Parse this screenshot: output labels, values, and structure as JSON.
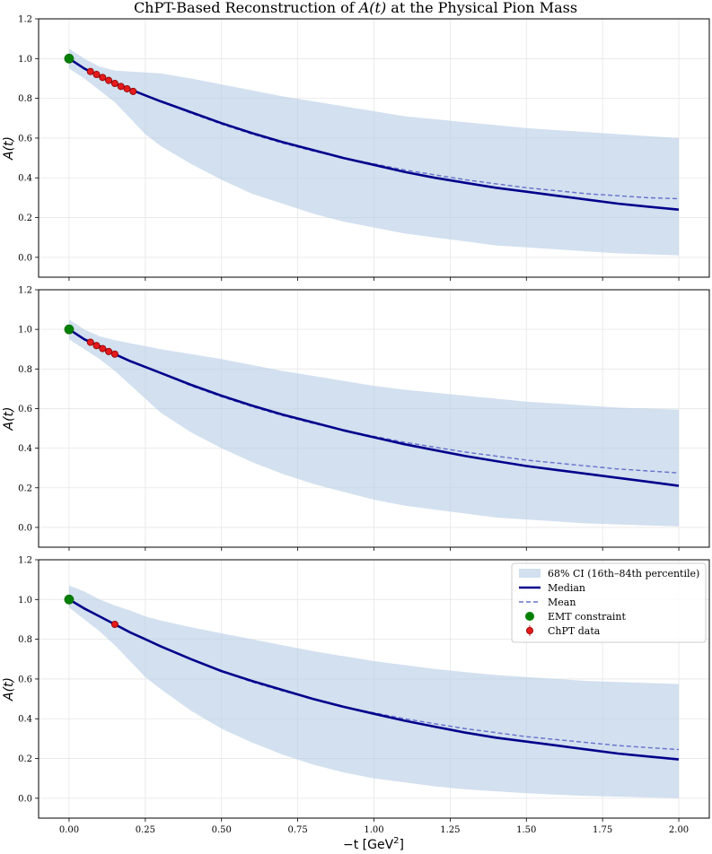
{
  "figure": {
    "title_prefix": "ChPT-Based Reconstruction of ",
    "title_math": "A(t)",
    "title_suffix": " at the Physical Pion Mass",
    "ylabel": "A(t)",
    "xlabel_prefix": "−t [GeV",
    "xlabel_sup": "2",
    "xlabel_suffix": "]"
  },
  "colors": {
    "band": "#b4cce4",
    "median": "#00008b",
    "mean": "#6670cc",
    "emt": "#008000",
    "chpt": "#e41a1c"
  },
  "legend": {
    "ci": "68% CI (16th–84th percentile)",
    "median": "Median",
    "mean": "Mean",
    "emt": "EMT constraint",
    "chpt": "ChPT data"
  },
  "chart_data": [
    {
      "type": "line",
      "panel": "top",
      "xlim": [
        -0.1,
        2.1
      ],
      "ylim": [
        -0.1,
        1.2
      ],
      "xticks": [
        "0.00",
        "0.25",
        "0.50",
        "0.75",
        "1.00",
        "1.25",
        "1.50",
        "1.75",
        "2.00"
      ],
      "yticks": [
        "0.0",
        "0.2",
        "0.4",
        "0.6",
        "0.8",
        "1.0",
        "1.2"
      ],
      "x": [
        0,
        0.05,
        0.1,
        0.15,
        0.2,
        0.25,
        0.3,
        0.4,
        0.5,
        0.6,
        0.7,
        0.8,
        0.9,
        1.0,
        1.1,
        1.2,
        1.3,
        1.4,
        1.5,
        1.6,
        1.7,
        1.8,
        1.9,
        2.0
      ],
      "median": [
        1.0,
        0.95,
        0.91,
        0.875,
        0.845,
        0.815,
        0.785,
        0.73,
        0.675,
        0.625,
        0.58,
        0.54,
        0.5,
        0.465,
        0.43,
        0.4,
        0.375,
        0.35,
        0.33,
        0.31,
        0.29,
        0.27,
        0.255,
        0.24
      ],
      "mean": [
        1.0,
        0.95,
        0.91,
        0.875,
        0.845,
        0.815,
        0.785,
        0.725,
        0.67,
        0.62,
        0.575,
        0.535,
        0.5,
        0.47,
        0.44,
        0.415,
        0.39,
        0.37,
        0.35,
        0.335,
        0.32,
        0.31,
        0.3,
        0.295
      ],
      "band_low": [
        0.95,
        0.9,
        0.84,
        0.78,
        0.7,
        0.62,
        0.56,
        0.47,
        0.39,
        0.32,
        0.27,
        0.22,
        0.18,
        0.15,
        0.12,
        0.1,
        0.08,
        0.06,
        0.05,
        0.04,
        0.03,
        0.02,
        0.015,
        0.01
      ],
      "band_high": [
        1.05,
        1.0,
        0.96,
        0.94,
        0.935,
        0.93,
        0.925,
        0.9,
        0.87,
        0.84,
        0.81,
        0.785,
        0.76,
        0.735,
        0.71,
        0.695,
        0.68,
        0.665,
        0.65,
        0.64,
        0.63,
        0.62,
        0.61,
        0.6
      ],
      "emt": {
        "x": 0,
        "y": 1.0
      },
      "chpt_x": [
        0.07,
        0.09,
        0.11,
        0.13,
        0.15,
        0.17,
        0.19,
        0.21
      ],
      "chpt_y": [
        0.935,
        0.92,
        0.905,
        0.89,
        0.875,
        0.86,
        0.848,
        0.835
      ]
    },
    {
      "type": "line",
      "panel": "middle",
      "xlim": [
        -0.1,
        2.1
      ],
      "ylim": [
        -0.1,
        1.2
      ],
      "xticks": [
        "0.00",
        "0.25",
        "0.50",
        "0.75",
        "1.00",
        "1.25",
        "1.50",
        "1.75",
        "2.00"
      ],
      "yticks": [
        "0.0",
        "0.2",
        "0.4",
        "0.6",
        "0.8",
        "1.0",
        "1.2"
      ],
      "x": [
        0,
        0.05,
        0.1,
        0.15,
        0.2,
        0.25,
        0.3,
        0.4,
        0.5,
        0.6,
        0.7,
        0.8,
        0.9,
        1.0,
        1.1,
        1.2,
        1.3,
        1.4,
        1.5,
        1.6,
        1.7,
        1.8,
        1.9,
        2.0
      ],
      "median": [
        1.0,
        0.95,
        0.915,
        0.875,
        0.84,
        0.81,
        0.78,
        0.72,
        0.665,
        0.615,
        0.57,
        0.53,
        0.49,
        0.455,
        0.42,
        0.39,
        0.36,
        0.335,
        0.31,
        0.29,
        0.27,
        0.25,
        0.23,
        0.21
      ],
      "mean": [
        1.0,
        0.95,
        0.915,
        0.875,
        0.84,
        0.81,
        0.78,
        0.715,
        0.66,
        0.61,
        0.565,
        0.525,
        0.49,
        0.46,
        0.43,
        0.405,
        0.38,
        0.36,
        0.34,
        0.325,
        0.31,
        0.295,
        0.285,
        0.275
      ],
      "band_low": [
        0.95,
        0.9,
        0.85,
        0.79,
        0.72,
        0.65,
        0.58,
        0.48,
        0.4,
        0.33,
        0.27,
        0.22,
        0.18,
        0.14,
        0.11,
        0.09,
        0.07,
        0.05,
        0.04,
        0.03,
        0.02,
        0.015,
        0.01,
        0.005
      ],
      "band_high": [
        1.05,
        1.0,
        0.965,
        0.945,
        0.93,
        0.915,
        0.9,
        0.875,
        0.85,
        0.82,
        0.79,
        0.765,
        0.74,
        0.715,
        0.695,
        0.68,
        0.665,
        0.65,
        0.635,
        0.625,
        0.615,
        0.605,
        0.6,
        0.595
      ],
      "emt": {
        "x": 0,
        "y": 1.0
      },
      "chpt_x": [
        0.07,
        0.09,
        0.11,
        0.13,
        0.15
      ],
      "chpt_y": [
        0.935,
        0.918,
        0.903,
        0.888,
        0.875
      ]
    },
    {
      "type": "line",
      "panel": "bottom",
      "xlim": [
        -0.1,
        2.1
      ],
      "ylim": [
        -0.1,
        1.2
      ],
      "xticks": [
        "0.00",
        "0.25",
        "0.50",
        "0.75",
        "1.00",
        "1.25",
        "1.50",
        "1.75",
        "2.00"
      ],
      "yticks": [
        "0.0",
        "0.2",
        "0.4",
        "0.6",
        "0.8",
        "1.0",
        "1.2"
      ],
      "x": [
        0,
        0.05,
        0.1,
        0.15,
        0.2,
        0.25,
        0.3,
        0.4,
        0.5,
        0.6,
        0.7,
        0.8,
        0.9,
        1.0,
        1.1,
        1.2,
        1.3,
        1.4,
        1.5,
        1.6,
        1.7,
        1.8,
        1.9,
        2.0
      ],
      "median": [
        1.0,
        0.955,
        0.915,
        0.875,
        0.835,
        0.8,
        0.765,
        0.7,
        0.64,
        0.59,
        0.545,
        0.5,
        0.46,
        0.425,
        0.39,
        0.36,
        0.33,
        0.305,
        0.285,
        0.265,
        0.245,
        0.225,
        0.21,
        0.195
      ],
      "mean": [
        1.0,
        0.955,
        0.915,
        0.875,
        0.835,
        0.8,
        0.765,
        0.7,
        0.64,
        0.585,
        0.54,
        0.5,
        0.46,
        0.43,
        0.4,
        0.375,
        0.35,
        0.33,
        0.31,
        0.295,
        0.28,
        0.265,
        0.255,
        0.245
      ],
      "band_low": [
        0.96,
        0.9,
        0.84,
        0.77,
        0.69,
        0.61,
        0.55,
        0.44,
        0.35,
        0.28,
        0.22,
        0.17,
        0.13,
        0.1,
        0.08,
        0.06,
        0.045,
        0.035,
        0.025,
        0.018,
        0.012,
        0.008,
        0.004,
        0.0
      ],
      "band_high": [
        1.07,
        1.04,
        1.0,
        0.97,
        0.945,
        0.915,
        0.895,
        0.86,
        0.83,
        0.8,
        0.77,
        0.74,
        0.715,
        0.69,
        0.67,
        0.65,
        0.635,
        0.62,
        0.61,
        0.6,
        0.59,
        0.585,
        0.58,
        0.575
      ],
      "emt": {
        "x": 0,
        "y": 1.0
      },
      "chpt_x": [
        0.15
      ],
      "chpt_y": [
        0.875
      ]
    }
  ]
}
